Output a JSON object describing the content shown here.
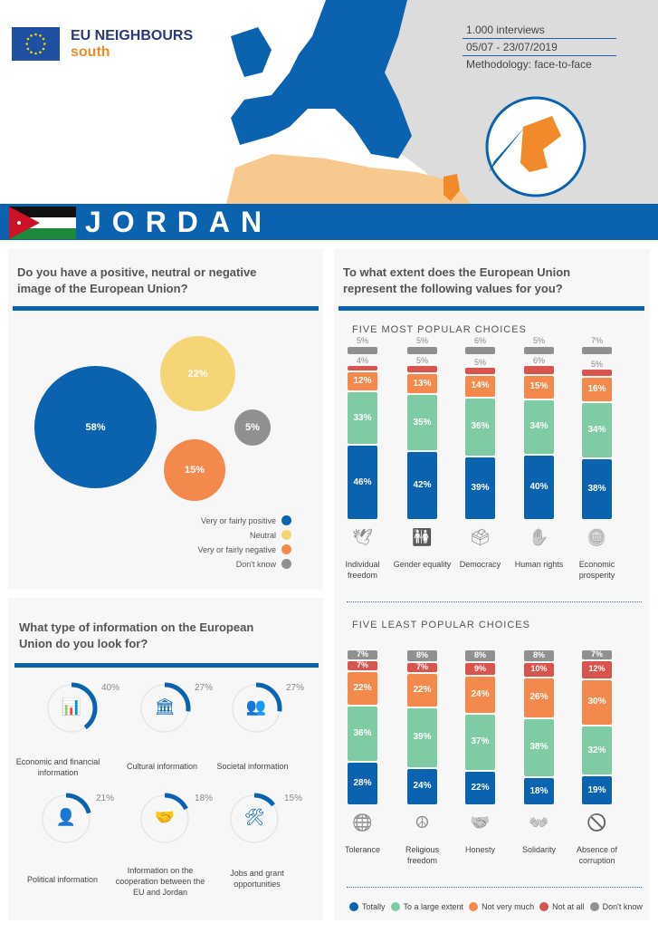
{
  "header": {
    "logo_line1": "EU NEIGHBOURS",
    "logo_line2": "south",
    "meta": [
      "1.000 interviews",
      "05/07 - 23/07/2019",
      "Methodology: face-to-face"
    ],
    "country": "JORDAN"
  },
  "colors": {
    "blue": "#0b63b0",
    "green": "#7fcba4",
    "orange": "#f4894e",
    "red": "#d9534f",
    "gray": "#909090",
    "yellow": "#f6d577"
  },
  "image_panel": {
    "title": "Do you have a positive, neutral or negative image of the European Union?",
    "bubbles": [
      {
        "label": "Very or fairly positive",
        "value": "58%",
        "color": "#0b63b0"
      },
      {
        "label": "Neutral",
        "value": "22%",
        "color": "#f6d577"
      },
      {
        "label": "Very or fairly negative",
        "value": "15%",
        "color": "#f4894e"
      },
      {
        "label": "Don't know",
        "value": "5%",
        "color": "#909090"
      }
    ]
  },
  "info_panel": {
    "title": "What type of information on the European Union do you look for?",
    "items": [
      {
        "label": "Economic and financial information",
        "value": "40%",
        "pct": 40,
        "icon": "chart-icon"
      },
      {
        "label": "Cultural information",
        "value": "27%",
        "pct": 27,
        "icon": "museum-icon"
      },
      {
        "label": "Societal information",
        "value": "27%",
        "pct": 27,
        "icon": "people-icon"
      },
      {
        "label": "Political information",
        "value": "21%",
        "pct": 21,
        "icon": "person-icon"
      },
      {
        "label": "Information on the cooperation between the EU and Jordan",
        "value": "18%",
        "pct": 18,
        "icon": "handshake-icon"
      },
      {
        "label": "Jobs and grant opportunities",
        "value": "15%",
        "pct": 15,
        "icon": "tools-icon"
      }
    ]
  },
  "values_panel": {
    "title": "To what extent does the European Union represent the following values for you?",
    "most_title": "FIVE MOST POPULAR CHOICES",
    "least_title": "FIVE LEAST POPULAR CHOICES",
    "legend": [
      "Totally",
      "To a large extent",
      "Not very much",
      "Not at all",
      "Don't know"
    ]
  },
  "chart_data": [
    {
      "type": "bar",
      "title": "FIVE MOST POPULAR CHOICES",
      "categories": [
        "Individual freedom",
        "Gender equality",
        "Democracy",
        "Human rights",
        "Economic prosperity"
      ],
      "series": [
        {
          "name": "Totally",
          "values": [
            46,
            42,
            39,
            40,
            38
          ]
        },
        {
          "name": "To a large extent",
          "values": [
            33,
            35,
            36,
            34,
            34
          ]
        },
        {
          "name": "Not very much",
          "values": [
            12,
            13,
            14,
            15,
            16
          ]
        },
        {
          "name": "Not at all",
          "values": [
            4,
            5,
            5,
            6,
            5
          ]
        },
        {
          "name": "Don't know",
          "values": [
            5,
            5,
            6,
            5,
            7
          ]
        }
      ],
      "stacked": true
    },
    {
      "type": "bar",
      "title": "FIVE LEAST POPULAR CHOICES",
      "categories": [
        "Tolerance",
        "Religious freedom",
        "Honesty",
        "Solidarity",
        "Absence of corruption"
      ],
      "series": [
        {
          "name": "Totally",
          "values": [
            28,
            24,
            22,
            18,
            19
          ]
        },
        {
          "name": "To a large extent",
          "values": [
            36,
            39,
            37,
            38,
            32
          ]
        },
        {
          "name": "Not very much",
          "values": [
            22,
            22,
            24,
            26,
            30
          ]
        },
        {
          "name": "Not at all",
          "values": [
            7,
            7,
            9,
            10,
            12
          ]
        },
        {
          "name": "Don't know",
          "values": [
            7,
            8,
            8,
            8,
            7
          ]
        }
      ],
      "stacked": true
    }
  ]
}
